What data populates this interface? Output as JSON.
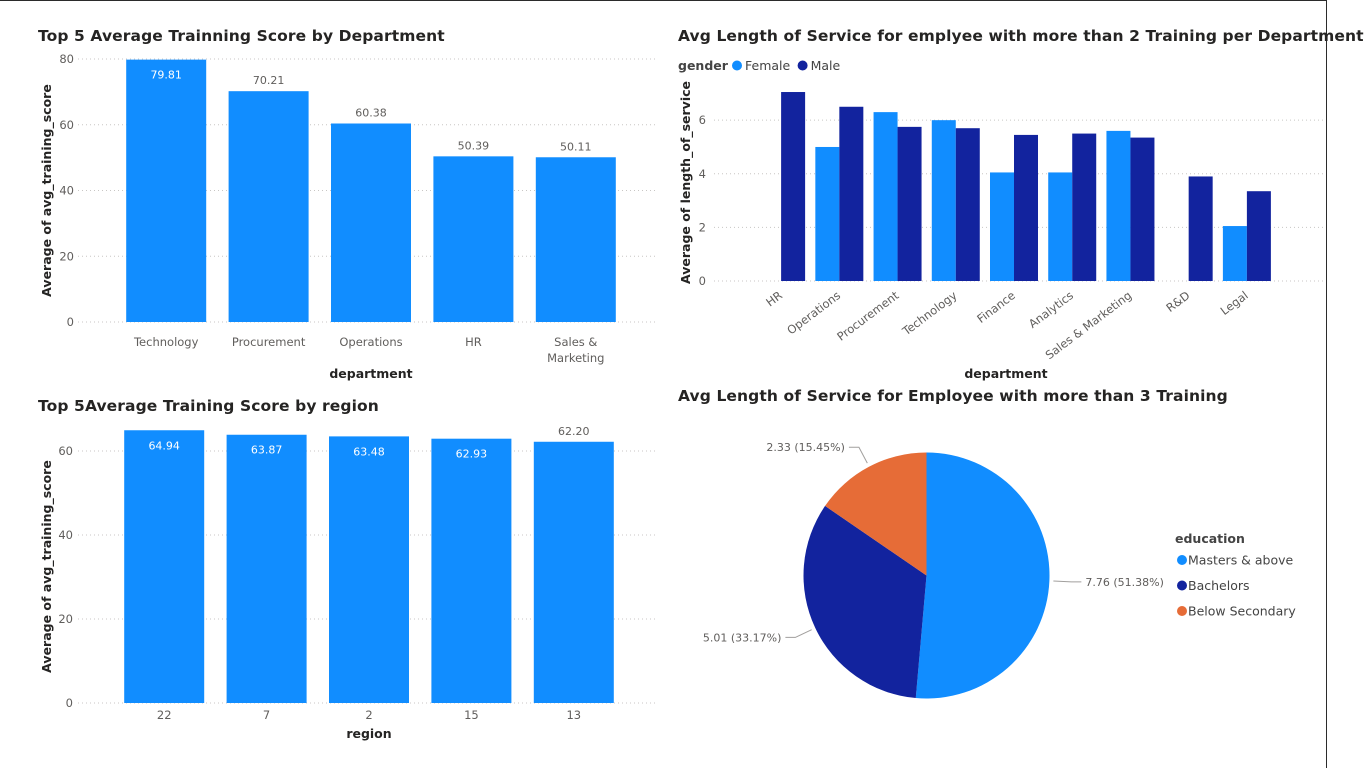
{
  "chart_data": [
    {
      "type": "bar",
      "title": "Top 5 Average Trainning Score by Department",
      "xlabel": "department",
      "ylabel": "Average of avg_training_score",
      "categories": [
        "Technology",
        "Procurement",
        "Operations",
        "HR",
        "Sales & Marketing"
      ],
      "values": [
        79.81,
        70.21,
        60.38,
        50.39,
        50.11
      ],
      "value_labels": [
        "79.81",
        "70.21",
        "60.38",
        "50.39",
        "50.11"
      ],
      "ylim": [
        0,
        80
      ],
      "yticks": [
        0,
        20,
        40,
        60,
        80
      ],
      "color": "#118DFF",
      "grid": true
    },
    {
      "type": "bar",
      "title": "Avg Length of Service for emplyee with more than 2 Training per Department",
      "xlabel": "department",
      "ylabel": "Average of length_of_service",
      "legend_title": "gender",
      "legend_position": "top-left",
      "categories": [
        "HR",
        "Operations",
        "Procurement",
        "Technology",
        "Finance",
        "Analytics",
        "Sales & Marketing",
        "R&D",
        "Legal"
      ],
      "series": [
        {
          "name": "Female",
          "color": "#118DFF",
          "values": [
            null,
            5.0,
            6.3,
            6.0,
            4.05,
            4.05,
            5.6,
            null,
            2.05
          ]
        },
        {
          "name": "Male",
          "color": "#12239E",
          "values": [
            7.05,
            6.5,
            5.75,
            5.7,
            5.45,
            5.5,
            5.35,
            3.9,
            3.35
          ]
        }
      ],
      "ylim": [
        0,
        7.2
      ],
      "yticks": [
        0,
        2,
        4,
        6
      ],
      "grid": true
    },
    {
      "type": "bar",
      "title": "Top 5Average Training Score by region",
      "xlabel": "region",
      "ylabel": "Average of avg_training_score",
      "categories": [
        "22",
        "7",
        "2",
        "15",
        "13"
      ],
      "values": [
        64.94,
        63.87,
        63.48,
        62.93,
        62.2
      ],
      "value_labels": [
        "64.94",
        "63.87",
        "63.48",
        "62.93",
        "62.20"
      ],
      "ylim": [
        0,
        65
      ],
      "yticks": [
        0,
        20,
        40,
        60
      ],
      "color": "#118DFF",
      "grid": true
    },
    {
      "type": "pie",
      "title": "Avg Length of Service for Employee with more than 3 Training",
      "legend_title": "education",
      "legend_position": "right",
      "slices": [
        {
          "label": "Masters & above",
          "value": 7.76,
          "percent": "51.38%",
          "data_label": "7.76 (51.38%)",
          "color": "#118DFF"
        },
        {
          "label": "Bachelors",
          "value": 5.01,
          "percent": "33.17%",
          "data_label": "5.01 (33.17%)",
          "color": "#12239E"
        },
        {
          "label": "Below Secondary",
          "value": 2.33,
          "percent": "15.45%",
          "data_label": "2.33 (15.45%)",
          "color": "#E66C37"
        }
      ]
    }
  ]
}
